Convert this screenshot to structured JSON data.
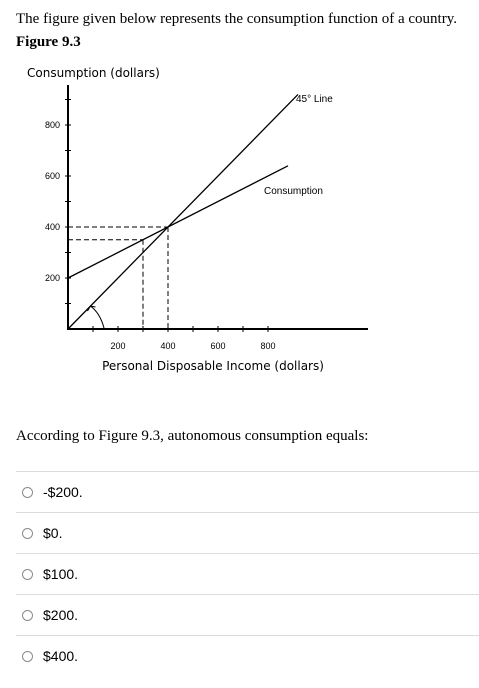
{
  "intro_text": "The figure given below represents the consumption function of a country.",
  "figure_label": "Figure 9.3",
  "chart_data": {
    "type": "line",
    "title": "",
    "ylabel": "Consumption (dollars)",
    "xlabel": "Personal Disposable Income (dollars)",
    "xlim": [
      0,
      1200
    ],
    "ylim": [
      0,
      1000
    ],
    "x_ticks": [
      200,
      400,
      600,
      800
    ],
    "y_ticks": [
      200,
      400,
      600,
      800
    ],
    "series": [
      {
        "name": "45° Line",
        "x": [
          0,
          920
        ],
        "y": [
          0,
          920
        ]
      },
      {
        "name": "Consumption",
        "x": [
          0,
          880
        ],
        "y": [
          200,
          640
        ]
      }
    ],
    "annotations": [
      "45° Line",
      "Consumption"
    ],
    "intersection": {
      "x": 400,
      "y": 400
    }
  },
  "question": "According to Figure 9.3, autonomous consumption equals:",
  "options": [
    "-$200.",
    "$0.",
    "$100.",
    "$200.",
    "$400."
  ]
}
